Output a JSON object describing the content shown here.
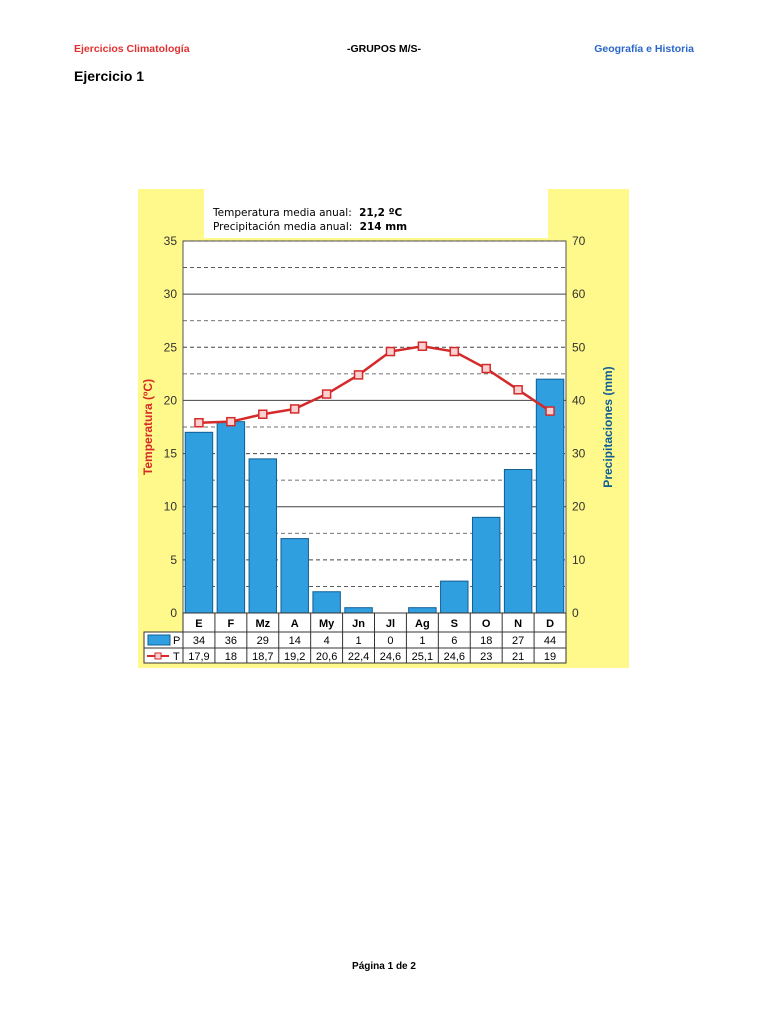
{
  "header": {
    "left": "Ejercicios Climatología",
    "center": "-GRUPOS M/S-",
    "right": "Geografía e Historia"
  },
  "exercise_title": "Ejercicio 1",
  "footer": "Página 1 de 2",
  "colors": {
    "chart_background": "#fff88a",
    "bar_fill": "#2f9fe0",
    "bar_stroke": "#0f5f95",
    "line": "#d42a2a",
    "header_left": "#e03131",
    "header_right": "#2a67c9"
  },
  "chart_data": {
    "type": "bar",
    "info": {
      "temp_label": "Temperatura media anual:",
      "temp_value": "21,2 ºC",
      "prec_label": "Precipitación media anual:",
      "prec_value": "214 mm"
    },
    "ylabel_left": "Temperatura (ºC)",
    "ylabel_right": "Precipitaciones (mm)",
    "ylim_left": [
      0,
      35
    ],
    "yticks_left": [
      0,
      5,
      10,
      15,
      20,
      25,
      30,
      35
    ],
    "ylim_right": [
      0,
      70
    ],
    "yticks_right": [
      0,
      10,
      20,
      30,
      40,
      50,
      60,
      70
    ],
    "categories": [
      "E",
      "F",
      "Mz",
      "A",
      "My",
      "Jn",
      "Jl",
      "Ag",
      "S",
      "O",
      "N",
      "D"
    ],
    "series": [
      {
        "name": "P",
        "type": "bar",
        "axis": "right",
        "values": [
          34,
          36,
          29,
          14,
          4,
          1,
          0,
          1,
          6,
          18,
          27,
          44
        ],
        "labels": [
          "34",
          "36",
          "29",
          "14",
          "4",
          "1",
          "0",
          "1",
          "6",
          "18",
          "27",
          "44"
        ]
      },
      {
        "name": "T",
        "type": "line",
        "axis": "left",
        "values": [
          17.9,
          18,
          18.7,
          19.2,
          20.6,
          22.4,
          24.6,
          25.1,
          24.6,
          23,
          21,
          19
        ],
        "labels": [
          "17,9",
          "18",
          "18,7",
          "19,2",
          "20,6",
          "22,4",
          "24,6",
          "25,1",
          "24,6",
          "23",
          "21",
          "19"
        ]
      }
    ],
    "grid": true,
    "legend": "bottom-left data table"
  }
}
